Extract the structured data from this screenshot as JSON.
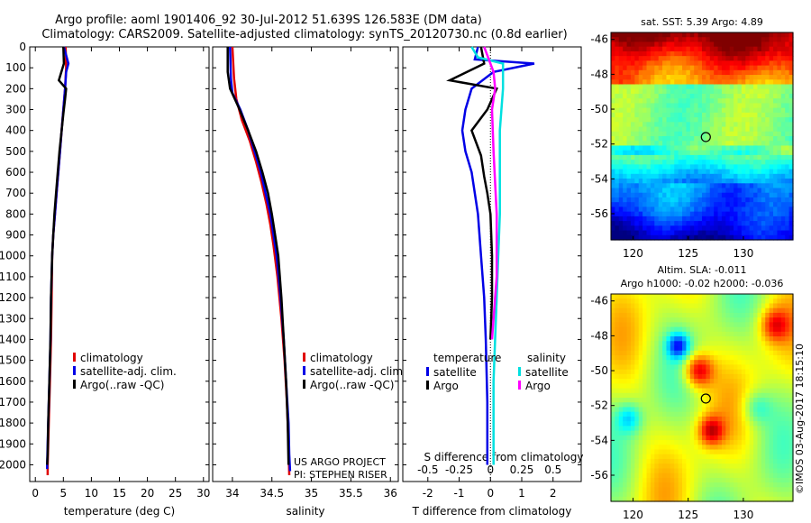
{
  "header": {
    "line1": "Argo profile: aoml 1901406_92 30-Jul-2012 51.639S 126.583E (DM data)",
    "line2": "Climatology: CARS2009. Satellite-adjusted climatology: synTS_20120730.nc (0.8d earlier)"
  },
  "colors": {
    "climatology": "#e00000",
    "satellite": "#0000e6",
    "argo": "#000000",
    "sat_salinity": "#00e0e0",
    "argo_salinity": "#ff00ff"
  },
  "credits": {
    "project": "US ARGO PROJECT",
    "pi": "PI: STEPHEN RISER",
    "stamp": "©IMOS 03-Aug-2017 18:15:10"
  },
  "chart_data": [
    {
      "id": "temperature",
      "type": "line",
      "xlabel": "temperature (deg C)",
      "ylabel": "",
      "xlim": [
        -1,
        31
      ],
      "ylim": [
        2080,
        0
      ],
      "xticks": [
        0,
        5,
        10,
        15,
        20,
        25,
        30
      ],
      "yticks": [
        0,
        100,
        200,
        300,
        400,
        500,
        600,
        700,
        800,
        900,
        1000,
        1100,
        1200,
        1300,
        1400,
        1500,
        1600,
        1700,
        1800,
        1900,
        2000
      ],
      "legend": [
        "climatology",
        "satellite-adj. clim.",
        "Argo(..raw -QC)"
      ],
      "series": [
        {
          "name": "climatology",
          "color": "#e00000",
          "points": [
            [
              5.4,
              0
            ],
            [
              5.5,
              100
            ],
            [
              5.3,
              200
            ],
            [
              5.0,
              300
            ],
            [
              4.7,
              400
            ],
            [
              4.4,
              500
            ],
            [
              4.1,
              600
            ],
            [
              3.8,
              700
            ],
            [
              3.5,
              800
            ],
            [
              3.2,
              900
            ],
            [
              3.0,
              1000
            ],
            [
              2.9,
              1200
            ],
            [
              2.8,
              1400
            ],
            [
              2.6,
              1600
            ],
            [
              2.4,
              1800
            ],
            [
              2.2,
              2000
            ],
            [
              2.2,
              2050
            ]
          ]
        },
        {
          "name": "satellite-adj. clim.",
          "color": "#0000e6",
          "points": [
            [
              5.1,
              0
            ],
            [
              5.9,
              80
            ],
            [
              5.5,
              120
            ],
            [
              5.3,
              200
            ],
            [
              5.0,
              300
            ],
            [
              4.7,
              400
            ],
            [
              4.4,
              500
            ],
            [
              4.1,
              600
            ],
            [
              3.8,
              700
            ],
            [
              3.5,
              800
            ],
            [
              3.2,
              900
            ],
            [
              3.0,
              1000
            ],
            [
              2.8,
              1200
            ],
            [
              2.7,
              1400
            ],
            [
              2.5,
              1600
            ],
            [
              2.3,
              1800
            ],
            [
              2.1,
              2000
            ],
            [
              2.1,
              2020
            ]
          ]
        },
        {
          "name": "Argo(..raw -QC)",
          "color": "#000000",
          "points": [
            [
              5.0,
              0
            ],
            [
              5.1,
              80
            ],
            [
              4.2,
              160
            ],
            [
              5.5,
              200
            ],
            [
              5.3,
              250
            ],
            [
              5.0,
              320
            ],
            [
              4.7,
              400
            ],
            [
              4.3,
              500
            ],
            [
              4.0,
              600
            ],
            [
              3.7,
              700
            ],
            [
              3.4,
              800
            ],
            [
              3.2,
              900
            ],
            [
              3.0,
              1000
            ],
            [
              2.8,
              1200
            ],
            [
              2.7,
              1400
            ],
            [
              2.5,
              1600
            ],
            [
              2.3,
              1800
            ],
            [
              2.2,
              1950
            ],
            [
              2.1,
              2000
            ]
          ]
        }
      ]
    },
    {
      "id": "salinity",
      "type": "line",
      "xlabel": "salinity",
      "ylabel": "",
      "xlim": [
        33.75,
        36.1
      ],
      "ylim": [
        2080,
        0
      ],
      "xticks": [
        34,
        34.5,
        35,
        35.5,
        36
      ],
      "legend": [
        "climatology",
        "satellite-adj. clim.",
        "Argo(..raw -QC)"
      ],
      "series": [
        {
          "name": "climatology",
          "color": "#e00000",
          "points": [
            [
              34.0,
              0
            ],
            [
              34.02,
              150
            ],
            [
              34.05,
              250
            ],
            [
              34.12,
              350
            ],
            [
              34.22,
              450
            ],
            [
              34.3,
              550
            ],
            [
              34.37,
              650
            ],
            [
              34.43,
              750
            ],
            [
              34.48,
              850
            ],
            [
              34.52,
              950
            ],
            [
              34.57,
              1100
            ],
            [
              34.62,
              1300
            ],
            [
              34.66,
              1500
            ],
            [
              34.69,
              1700
            ],
            [
              34.71,
              1900
            ],
            [
              34.72,
              2050
            ]
          ]
        },
        {
          "name": "satellite-adj. clim.",
          "color": "#0000e6",
          "points": [
            [
              33.97,
              0
            ],
            [
              33.98,
              150
            ],
            [
              34.0,
              220
            ],
            [
              34.1,
              300
            ],
            [
              34.2,
              400
            ],
            [
              34.28,
              500
            ],
            [
              34.36,
              600
            ],
            [
              34.42,
              700
            ],
            [
              34.48,
              800
            ],
            [
              34.52,
              900
            ],
            [
              34.56,
              1000
            ],
            [
              34.61,
              1200
            ],
            [
              34.65,
              1400
            ],
            [
              34.68,
              1600
            ],
            [
              34.71,
              1800
            ],
            [
              34.72,
              1950
            ],
            [
              34.73,
              2030
            ]
          ]
        },
        {
          "name": "Argo(..raw -QC)",
          "color": "#000000",
          "points": [
            [
              33.94,
              0
            ],
            [
              33.94,
              120
            ],
            [
              33.97,
              200
            ],
            [
              34.08,
              290
            ],
            [
              34.2,
              400
            ],
            [
              34.3,
              500
            ],
            [
              34.38,
              600
            ],
            [
              34.45,
              700
            ],
            [
              34.5,
              800
            ],
            [
              34.54,
              900
            ],
            [
              34.58,
              1000
            ],
            [
              34.62,
              1200
            ],
            [
              34.65,
              1400
            ],
            [
              34.68,
              1600
            ],
            [
              34.7,
              1800
            ],
            [
              34.71,
              2000
            ]
          ]
        }
      ],
      "annotation": [
        "US ARGO PROJECT",
        "PI: STEPHEN RISER"
      ]
    },
    {
      "id": "difference",
      "type": "line",
      "xlabel": "T difference from climatology",
      "xlabel_top": "S difference from climatology",
      "xlim": [
        -2.8,
        2.9
      ],
      "ylim": [
        2080,
        0
      ],
      "xticks": [
        -2,
        -1,
        0,
        1,
        2
      ],
      "xticks_top": [
        -0.5,
        -0.25,
        0,
        0.25,
        0.5
      ],
      "legend_groups": [
        {
          "title": "temperature",
          "entries": [
            "satellite",
            "Argo"
          ]
        },
        {
          "title": "salinity",
          "entries": [
            "satellite",
            "Argo"
          ]
        }
      ],
      "series": [
        {
          "name": "satellite",
          "group": "temperature",
          "color": "#0000e6",
          "points": [
            [
              -0.4,
              0
            ],
            [
              -0.5,
              60
            ],
            [
              1.4,
              80
            ],
            [
              0.1,
              120
            ],
            [
              -0.6,
              200
            ],
            [
              -0.8,
              300
            ],
            [
              -0.9,
              400
            ],
            [
              -0.8,
              500
            ],
            [
              -0.6,
              600
            ],
            [
              -0.5,
              700
            ],
            [
              -0.4,
              800
            ],
            [
              -0.3,
              1000
            ],
            [
              -0.2,
              1200
            ],
            [
              -0.15,
              1400
            ],
            [
              -0.1,
              1700
            ],
            [
              -0.1,
              2000
            ]
          ]
        },
        {
          "name": "Argo",
          "group": "temperature",
          "color": "#000000",
          "points": [
            [
              -0.3,
              0
            ],
            [
              -0.2,
              80
            ],
            [
              -1.3,
              160
            ],
            [
              0.2,
              200
            ],
            [
              -0.1,
              300
            ],
            [
              -0.6,
              400
            ],
            [
              -0.3,
              520
            ],
            [
              -0.2,
              620
            ],
            [
              -0.1,
              700
            ],
            [
              0.0,
              800
            ],
            [
              0.05,
              1000
            ],
            [
              0.05,
              1200
            ],
            [
              0.0,
              1400
            ]
          ]
        },
        {
          "name": "satellite",
          "group": "salinity",
          "color": "#00e0e0",
          "points": [
            [
              -0.6,
              0
            ],
            [
              -0.4,
              50
            ],
            [
              0.4,
              80
            ],
            [
              0.4,
              200
            ],
            [
              0.3,
              400
            ],
            [
              0.3,
              800
            ],
            [
              0.2,
              1200
            ],
            [
              0.1,
              1600
            ],
            [
              0.1,
              2000
            ]
          ]
        },
        {
          "name": "Argo",
          "group": "salinity",
          "color": "#ff00ff",
          "points": [
            [
              -0.2,
              0
            ],
            [
              0.1,
              120
            ],
            [
              0.15,
              200
            ],
            [
              0.05,
              300
            ],
            [
              0.1,
              500
            ],
            [
              0.2,
              800
            ],
            [
              0.2,
              1100
            ],
            [
              0.05,
              1400
            ]
          ]
        }
      ]
    },
    {
      "id": "sst_map",
      "type": "heatmap",
      "title": "sat. SST: 5.39 Argo: 4.89",
      "xlim": [
        118,
        134.5
      ],
      "ylim": [
        -57.5,
        -45.6
      ],
      "xticks": [
        120,
        125,
        130
      ],
      "yticks": [
        -46,
        -48,
        -50,
        -52,
        -54,
        -56
      ],
      "marker": [
        126.6,
        -51.6
      ]
    },
    {
      "id": "sla_map",
      "type": "heatmap",
      "title": "Altim. SLA: -0.011",
      "subtitle": "Argo h1000: -0.02 h2000: -0.036",
      "xlim": [
        118,
        134.5
      ],
      "ylim": [
        -57.5,
        -45.6
      ],
      "xticks": [
        120,
        125,
        130
      ],
      "yticks": [
        -46,
        -48,
        -50,
        -52,
        -54,
        -56
      ],
      "marker": [
        126.6,
        -51.6
      ]
    }
  ]
}
